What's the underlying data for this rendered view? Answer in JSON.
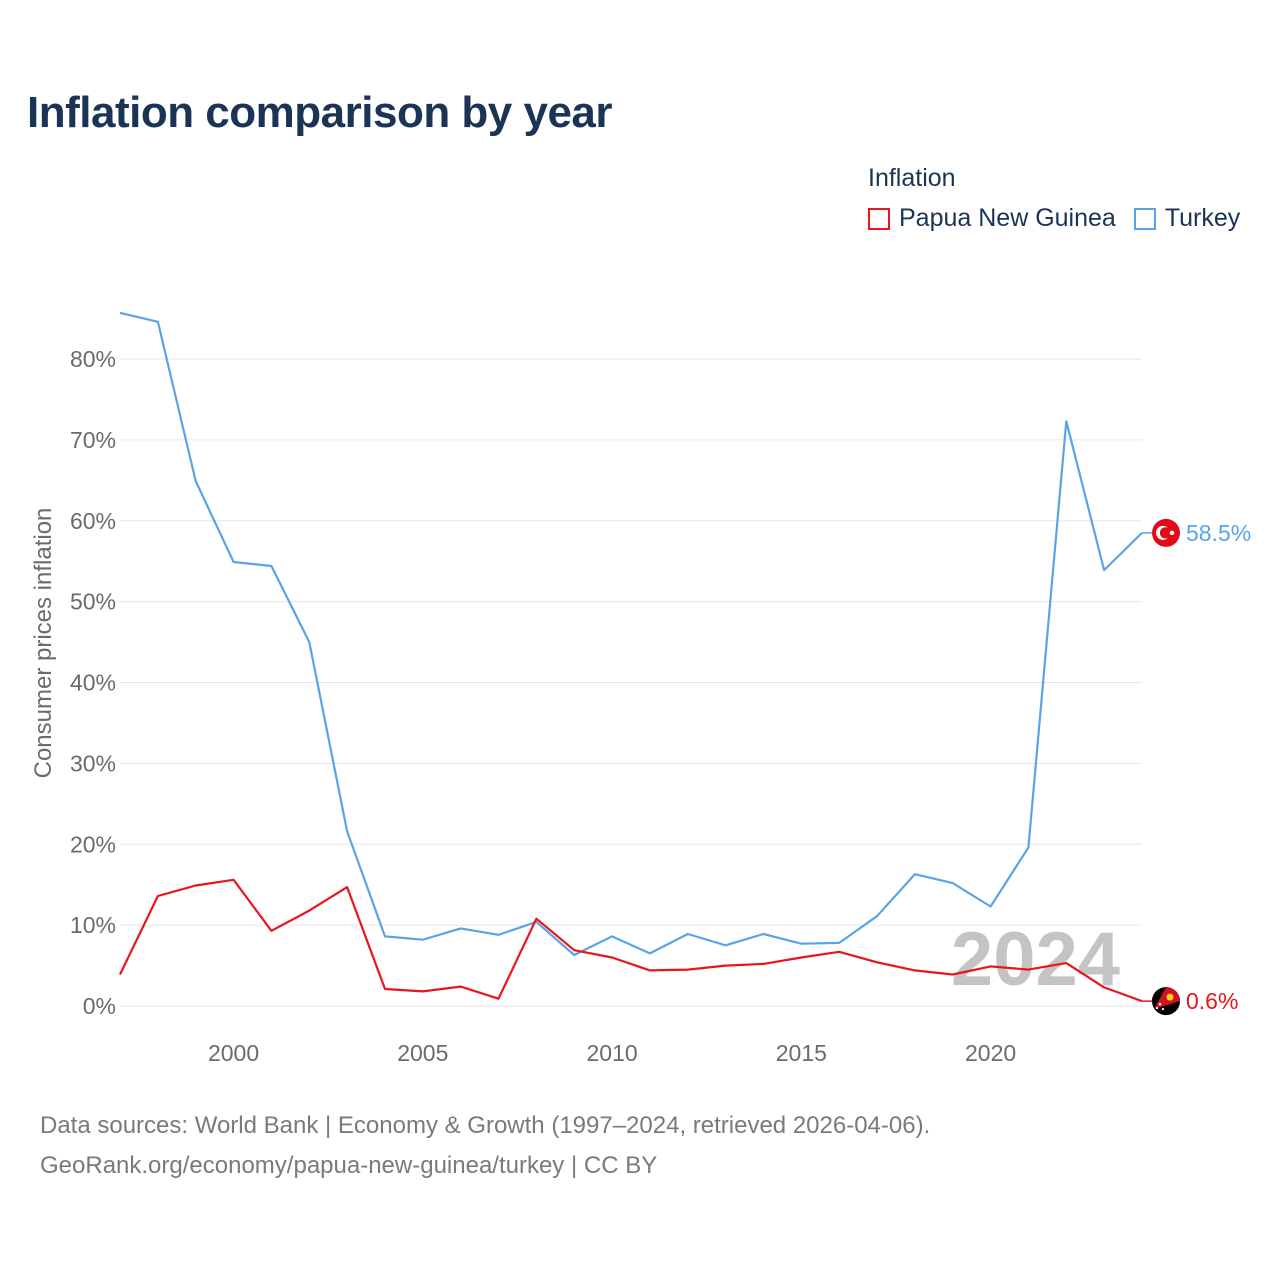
{
  "header": {
    "title": "Inflation comparison by year"
  },
  "legend": {
    "title": "Inflation",
    "items": [
      {
        "label": "Papua New Guinea",
        "color": "#e8161c"
      },
      {
        "label": "Turkey",
        "color": "#5aa4e6"
      }
    ]
  },
  "chart_data": {
    "type": "line",
    "title": "Inflation comparison by year",
    "xlabel": "",
    "ylabel": "Consumer prices inflation",
    "xlim": [
      1997,
      2024
    ],
    "ylim": [
      0,
      80
    ],
    "y_ticks": [
      0,
      10,
      20,
      30,
      40,
      50,
      60,
      70,
      80
    ],
    "y_tick_labels": [
      "0%",
      "10%",
      "20%",
      "30%",
      "40%",
      "50%",
      "60%",
      "70%",
      "80%"
    ],
    "x_ticks": [
      2000,
      2005,
      2010,
      2015,
      2020
    ],
    "x_tick_labels": [
      "2000",
      "2005",
      "2010",
      "2015",
      "2020"
    ],
    "grid": true,
    "watermark": "2024",
    "x": [
      1997,
      1998,
      1999,
      2000,
      2001,
      2002,
      2003,
      2004,
      2005,
      2006,
      2007,
      2008,
      2009,
      2010,
      2011,
      2012,
      2013,
      2014,
      2015,
      2016,
      2017,
      2018,
      2019,
      2020,
      2021,
      2022,
      2023,
      2024
    ],
    "series": [
      {
        "name": "Turkey",
        "color": "#5aa4e6",
        "end_label": "58.5%",
        "values": [
          85.7,
          84.6,
          64.9,
          54.9,
          54.4,
          45.0,
          21.6,
          8.6,
          8.2,
          9.6,
          8.8,
          10.4,
          6.3,
          8.6,
          6.5,
          8.9,
          7.5,
          8.9,
          7.7,
          7.8,
          11.1,
          16.3,
          15.2,
          12.3,
          19.6,
          72.3,
          53.9,
          58.5
        ]
      },
      {
        "name": "Papua New Guinea",
        "color": "#e8161c",
        "end_label": "0.6%",
        "values": [
          3.9,
          13.6,
          14.9,
          15.6,
          9.3,
          11.8,
          14.7,
          2.1,
          1.8,
          2.4,
          0.9,
          10.8,
          6.9,
          6.0,
          4.4,
          4.5,
          5.0,
          5.2,
          6.0,
          6.7,
          5.4,
          4.4,
          3.9,
          4.9,
          4.5,
          5.3,
          2.3,
          0.6
        ]
      }
    ]
  },
  "footer": {
    "line1": "Data sources: World Bank | Economy & Growth (1997–2024, retrieved 2026-04-06).",
    "line2": "GeoRank.org/economy/papua-new-guinea/turkey | CC BY"
  }
}
